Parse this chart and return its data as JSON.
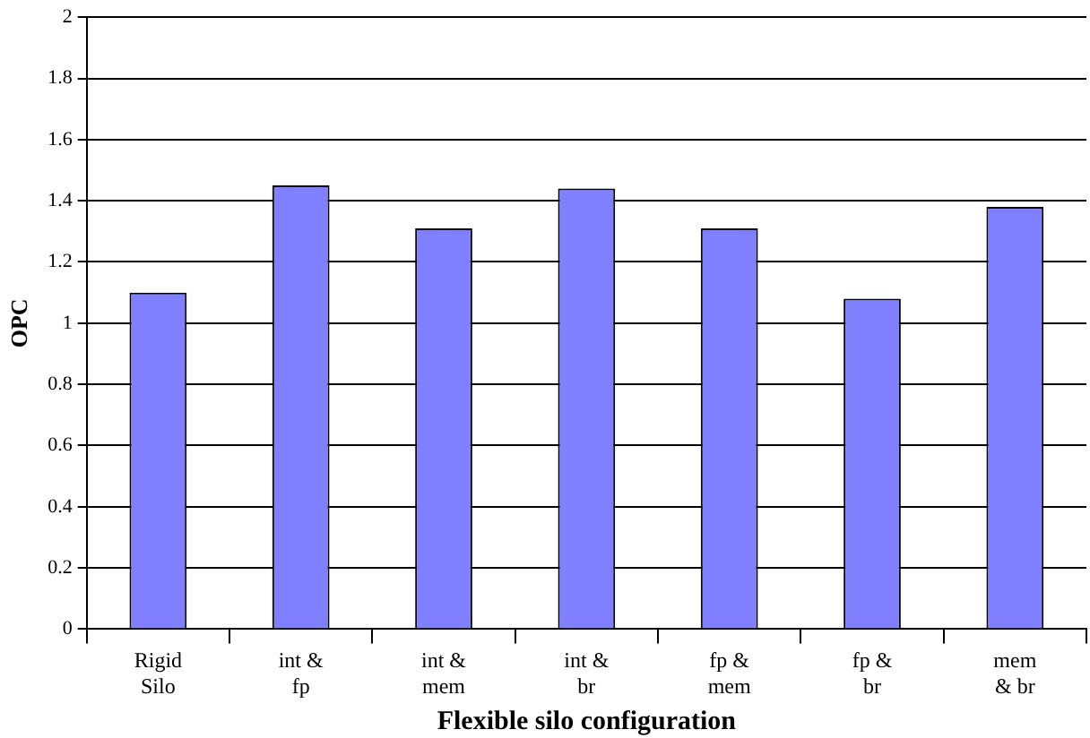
{
  "chart_data": {
    "type": "bar",
    "xlabel": "Flexible silo configuration",
    "ylabel": "OPC",
    "categories": [
      "Rigid\nSilo",
      "int &\nfp",
      "int &\nmem",
      "int &\nbr",
      "fp &\nmem",
      "fp &\nbr",
      "mem\n& br"
    ],
    "values": [
      1.1,
      1.45,
      1.31,
      1.44,
      1.31,
      1.08,
      1.38
    ],
    "color": "#8080ff",
    "ylim": [
      0,
      2
    ],
    "yticks": [
      0,
      0.2,
      0.4,
      0.6,
      0.8,
      1,
      1.2,
      1.4,
      1.6,
      1.8,
      2
    ],
    "grid": "y",
    "legend": false
  }
}
